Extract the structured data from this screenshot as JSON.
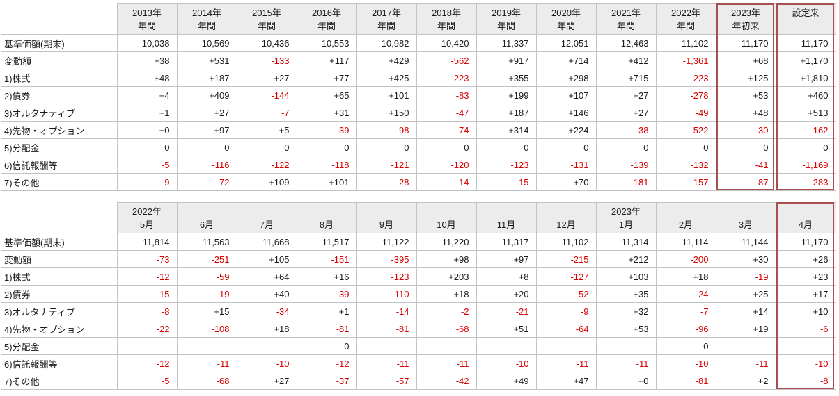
{
  "colors": {
    "header_bg": "#ececec",
    "grid": "#c3c3c3",
    "text": "#1a1a1a",
    "negative": "#d90000",
    "highlight_box": "#a85050",
    "page_bg": "#ffffff"
  },
  "chart_data": [
    {
      "type": "table",
      "name": "annual-performance",
      "columns": [
        {
          "line1": "2013年",
          "line2": "年間"
        },
        {
          "line1": "2014年",
          "line2": "年間"
        },
        {
          "line1": "2015年",
          "line2": "年間"
        },
        {
          "line1": "2016年",
          "line2": "年間"
        },
        {
          "line1": "2017年",
          "line2": "年間"
        },
        {
          "line1": "2018年",
          "line2": "年間"
        },
        {
          "line1": "2019年",
          "line2": "年間"
        },
        {
          "line1": "2020年",
          "line2": "年間"
        },
        {
          "line1": "2021年",
          "line2": "年間"
        },
        {
          "line1": "2022年",
          "line2": "年間"
        },
        {
          "line1": "2023年",
          "line2": "年初来"
        },
        {
          "line1": "設定来",
          "line2": ""
        }
      ],
      "highlight_columns": [
        10,
        11
      ],
      "rows": [
        {
          "label": "基準価額(期末)",
          "values": [
            "10,038",
            "10,569",
            "10,436",
            "10,553",
            "10,982",
            "10,420",
            "11,337",
            "12,051",
            "12,463",
            "11,102",
            "11,170",
            "11,170"
          ]
        },
        {
          "label": "変動額",
          "values": [
            "+38",
            "+531",
            "-133",
            "+117",
            "+429",
            "-562",
            "+917",
            "+714",
            "+412",
            "-1,361",
            "+68",
            "+1,170"
          ]
        },
        {
          "label": "1)株式",
          "values": [
            "+48",
            "+187",
            "+27",
            "+77",
            "+425",
            "-223",
            "+355",
            "+298",
            "+715",
            "-223",
            "+125",
            "+1,810"
          ]
        },
        {
          "label": "2)債券",
          "values": [
            "+4",
            "+409",
            "-144",
            "+65",
            "+101",
            "-83",
            "+199",
            "+107",
            "+27",
            "-278",
            "+53",
            "+460"
          ]
        },
        {
          "label": "3)オルタナティブ",
          "values": [
            "+1",
            "+27",
            "-7",
            "+31",
            "+150",
            "-47",
            "+187",
            "+146",
            "+27",
            "-49",
            "+48",
            "+513"
          ]
        },
        {
          "label": "4)先物・オプション",
          "values": [
            "+0",
            "+97",
            "+5",
            "-39",
            "-98",
            "-74",
            "+314",
            "+224",
            "-38",
            "-522",
            "-30",
            "-162"
          ]
        },
        {
          "label": "5)分配金",
          "values": [
            "0",
            "0",
            "0",
            "0",
            "0",
            "0",
            "0",
            "0",
            "0",
            "0",
            "0",
            "0"
          ]
        },
        {
          "label": "6)信託報酬等",
          "values": [
            "-5",
            "-116",
            "-122",
            "-118",
            "-121",
            "-120",
            "-123",
            "-131",
            "-139",
            "-132",
            "-41",
            "-1,169"
          ]
        },
        {
          "label": "7)その他",
          "values": [
            "-9",
            "-72",
            "+109",
            "+101",
            "-28",
            "-14",
            "-15",
            "+70",
            "-181",
            "-157",
            "-87",
            "-283"
          ]
        }
      ]
    },
    {
      "type": "table",
      "name": "monthly-performance",
      "columns": [
        {
          "line1": "2022年",
          "line2": "5月"
        },
        {
          "line1": "",
          "line2": "6月"
        },
        {
          "line1": "",
          "line2": "7月"
        },
        {
          "line1": "",
          "line2": "8月"
        },
        {
          "line1": "",
          "line2": "9月"
        },
        {
          "line1": "",
          "line2": "10月"
        },
        {
          "line1": "",
          "line2": "11月"
        },
        {
          "line1": "",
          "line2": "12月"
        },
        {
          "line1": "2023年",
          "line2": "1月"
        },
        {
          "line1": "",
          "line2": "2月"
        },
        {
          "line1": "",
          "line2": "3月"
        },
        {
          "line1": "",
          "line2": "4月"
        }
      ],
      "highlight_columns": [
        11
      ],
      "rows": [
        {
          "label": "基準価額(期末)",
          "values": [
            "11,814",
            "11,563",
            "11,668",
            "11,517",
            "11,122",
            "11,220",
            "11,317",
            "11,102",
            "11,314",
            "11,114",
            "11,144",
            "11,170"
          ]
        },
        {
          "label": "変動額",
          "values": [
            "-73",
            "-251",
            "+105",
            "-151",
            "-395",
            "+98",
            "+97",
            "-215",
            "+212",
            "-200",
            "+30",
            "+26"
          ]
        },
        {
          "label": "1)株式",
          "values": [
            "-12",
            "-59",
            "+64",
            "+16",
            "-123",
            "+203",
            "+8",
            "-127",
            "+103",
            "+18",
            "-19",
            "+23"
          ]
        },
        {
          "label": "2)債券",
          "values": [
            "-15",
            "-19",
            "+40",
            "-39",
            "-110",
            "+18",
            "+20",
            "-52",
            "+35",
            "-24",
            "+25",
            "+17"
          ]
        },
        {
          "label": "3)オルタナティブ",
          "values": [
            "-8",
            "+15",
            "-34",
            "+1",
            "-14",
            "-2",
            "-21",
            "-9",
            "+32",
            "-7",
            "+14",
            "+10"
          ]
        },
        {
          "label": "4)先物・オプション",
          "values": [
            "-22",
            "-108",
            "+18",
            "-81",
            "-81",
            "-68",
            "+51",
            "-64",
            "+53",
            "-96",
            "+19",
            "-6"
          ]
        },
        {
          "label": "5)分配金",
          "values": [
            "--",
            "--",
            "--",
            "0",
            "--",
            "--",
            "--",
            "--",
            "--",
            "0",
            "--",
            "--"
          ]
        },
        {
          "label": "6)信託報酬等",
          "values": [
            "-12",
            "-11",
            "-10",
            "-12",
            "-11",
            "-11",
            "-10",
            "-11",
            "-11",
            "-10",
            "-11",
            "-10"
          ]
        },
        {
          "label": "7)その他",
          "values": [
            "-5",
            "-68",
            "+27",
            "-37",
            "-57",
            "-42",
            "+49",
            "+47",
            "+0",
            "-81",
            "+2",
            "-8"
          ]
        }
      ]
    }
  ]
}
